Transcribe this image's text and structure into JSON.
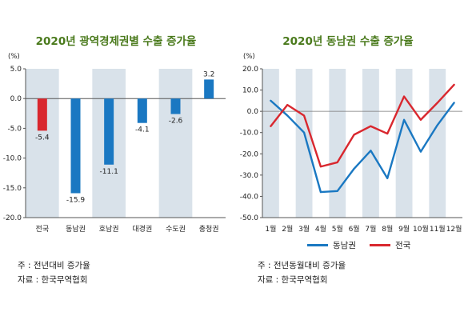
{
  "left_chart": {
    "title": "2020년 광역경제권별 수출 증가율",
    "unit": "(%)",
    "note1": "주 : 전년대비 증가율",
    "note2": "자료 : 한국무역협회"
  },
  "right_chart": {
    "title": "2020년 동남권 수출 증가율",
    "unit": "(%)",
    "note1": "주 : 전년동월대비 증가율",
    "note2": "자료 : 한국무역협회"
  },
  "chart_data": [
    {
      "type": "bar",
      "title": "2020년 광역경제권별 수출 증가율",
      "ylabel": "(%)",
      "ylim": [
        -20.0,
        5.0
      ],
      "yticks": [
        "5.0",
        "0.0",
        "-5.0",
        "-10.0",
        "-15.0",
        "-20.0"
      ],
      "categories": [
        "전국",
        "동남권",
        "호남권",
        "대경권",
        "수도권",
        "충청권"
      ],
      "values": [
        -5.4,
        -15.9,
        -11.1,
        -4.1,
        -2.6,
        3.2
      ],
      "value_labels": [
        "-5.4",
        "-15.9",
        "-11.1",
        "-4.1",
        "-2.6",
        "3.2"
      ],
      "colors": [
        "#d9272e",
        "#1a78c2",
        "#1a78c2",
        "#1a78c2",
        "#1a78c2",
        "#1a78c2"
      ],
      "grid": false
    },
    {
      "type": "line",
      "title": "2020년 동남권 수출 증가율",
      "ylabel": "(%)",
      "ylim": [
        -50.0,
        20.0
      ],
      "yticks": [
        "20.0",
        "10.0",
        "0.0",
        "-10.0",
        "-20.0",
        "-30.0",
        "-40.0",
        "-50.0"
      ],
      "x": [
        "1월",
        "2월",
        "3월",
        "4월",
        "5월",
        "6월",
        "7월",
        "8월",
        "9월",
        "10월",
        "11월",
        "12월"
      ],
      "series": [
        {
          "name": "동남권",
          "color": "#1a78c2",
          "values": [
            5.0,
            -2.0,
            -10.0,
            -38.0,
            -37.5,
            -27.0,
            -18.5,
            -31.5,
            -4.0,
            -19.0,
            -6.5,
            4.0
          ]
        },
        {
          "name": "전국",
          "color": "#d9272e",
          "values": [
            -7.0,
            3.0,
            -2.0,
            -26.0,
            -24.0,
            -11.0,
            -7.0,
            -10.5,
            7.0,
            -4.0,
            4.0,
            12.5
          ]
        }
      ],
      "legend": "bottom",
      "grid": false
    }
  ]
}
